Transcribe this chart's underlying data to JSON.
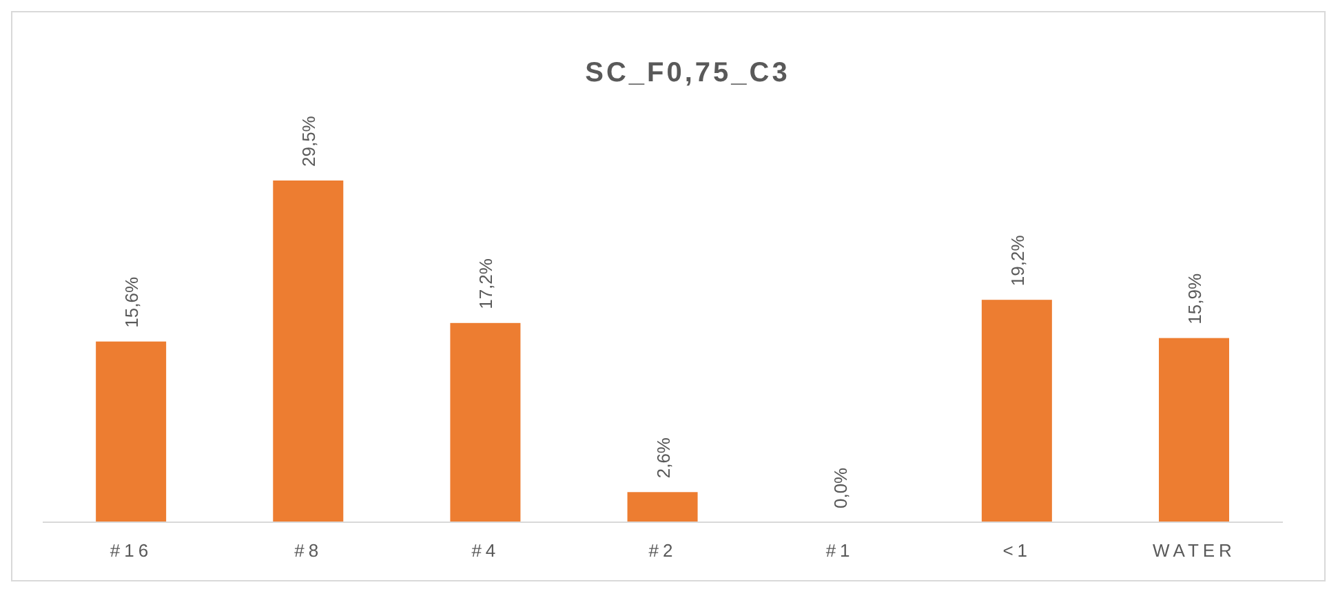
{
  "chart_data": {
    "type": "bar",
    "title": "SC_F0,75_C3",
    "categories": [
      "#16",
      "#8",
      "#4",
      "#2",
      "#1",
      "<1",
      "WATER"
    ],
    "values": [
      15.6,
      29.5,
      17.2,
      2.6,
      0.0,
      19.2,
      15.9
    ],
    "value_labels": [
      "15,6%",
      "29,5%",
      "17,2%",
      "2,6%",
      "0,0%",
      "19,2%",
      "15,9%"
    ],
    "color": "#ed7d31",
    "grid": false,
    "legend": false
  }
}
